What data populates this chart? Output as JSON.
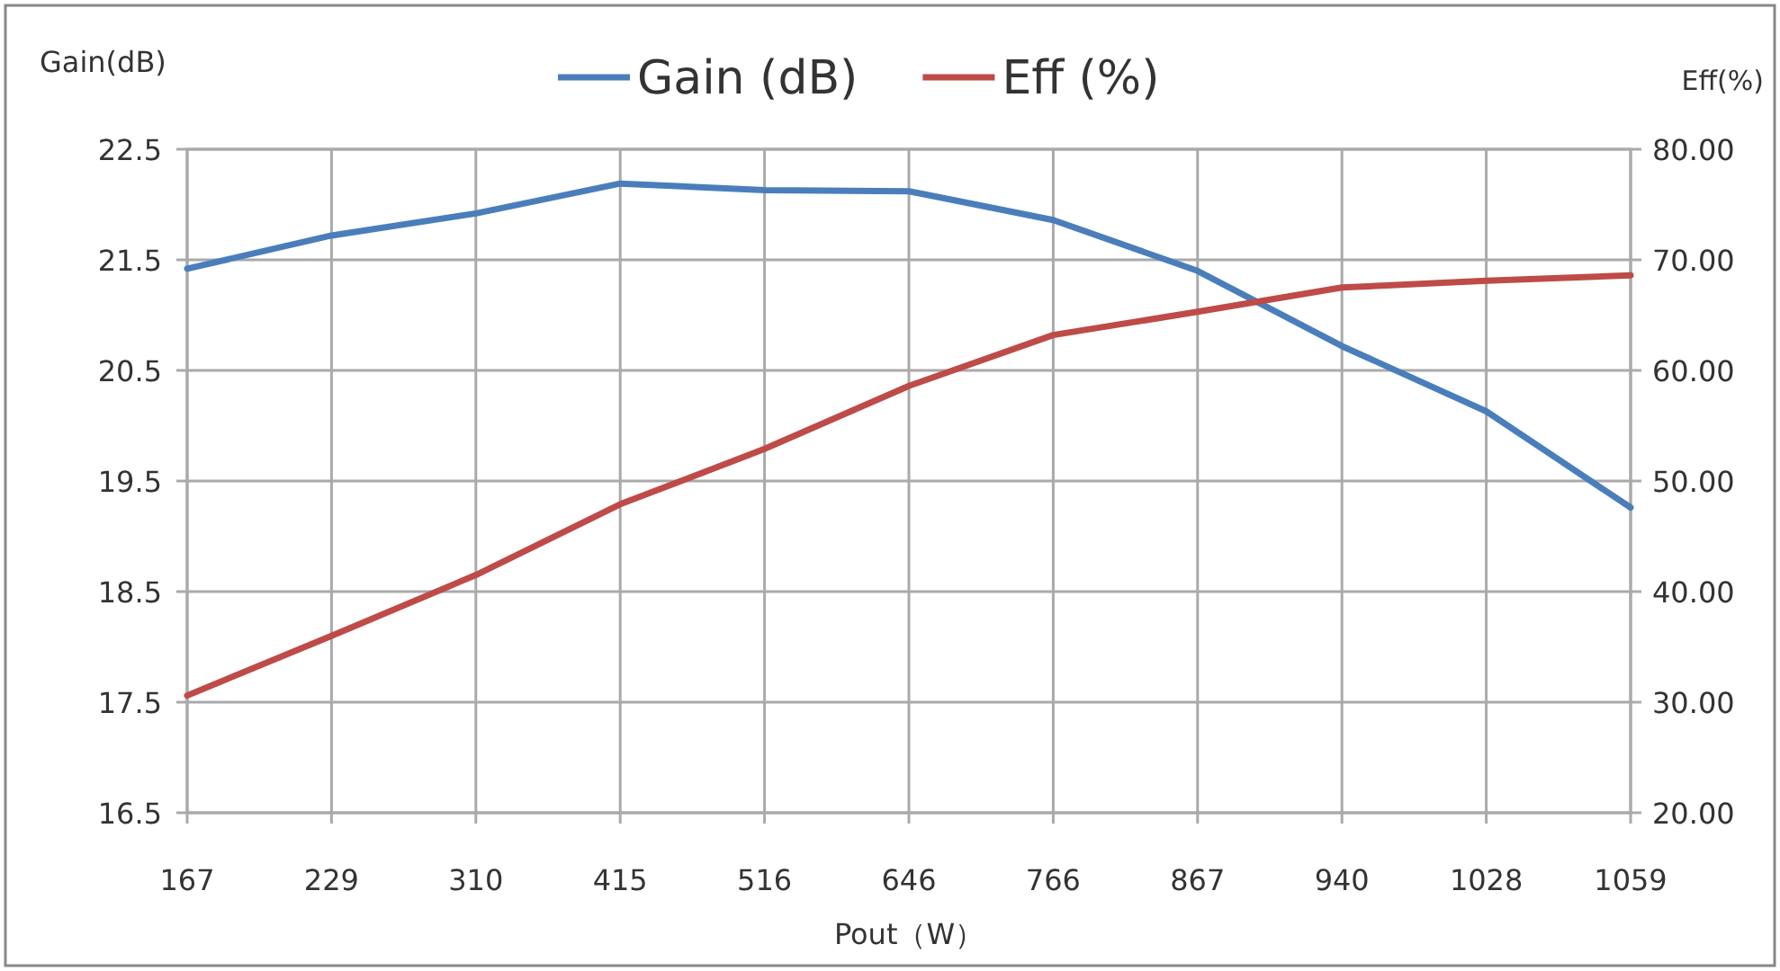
{
  "chart_data": {
    "type": "line",
    "xlabel": "Pout（W）",
    "ylabel": "Gain(dB)",
    "y2label": "Eff(%)",
    "categories": [
      "167",
      "229",
      "310",
      "415",
      "516",
      "646",
      "766",
      "867",
      "940",
      "1028",
      "1059"
    ],
    "series": [
      {
        "name": "Gain (dB)",
        "color": "#4a7ebb",
        "values": [
          21.42,
          21.72,
          21.92,
          22.19,
          22.13,
          22.12,
          21.86,
          21.4,
          20.72,
          20.13,
          19.26
        ]
      },
      {
        "name": "Eff (%)",
        "color": "#be4b48",
        "axis": "y2",
        "values": [
          30.6,
          36.0,
          41.5,
          47.9,
          52.9,
          58.6,
          63.2,
          65.3,
          67.5,
          68.1,
          68.6
        ]
      }
    ],
    "ylim": [
      16.5,
      22.5
    ],
    "yticks": [
      16.5,
      17.5,
      18.5,
      19.5,
      20.5,
      21.5,
      22.5
    ],
    "y2lim": [
      20,
      80
    ],
    "y2ticks": [
      {
        "value": 20,
        "label": "20.00"
      },
      {
        "value": 30,
        "label": "30.00"
      },
      {
        "value": 40,
        "label": "40.00"
      },
      {
        "value": 50,
        "label": "50.00"
      },
      {
        "value": 60,
        "label": "60.00"
      },
      {
        "value": 70,
        "label": "70.00"
      },
      {
        "value": 80,
        "label": "80.00"
      }
    ],
    "grid": true,
    "legend": "top"
  }
}
